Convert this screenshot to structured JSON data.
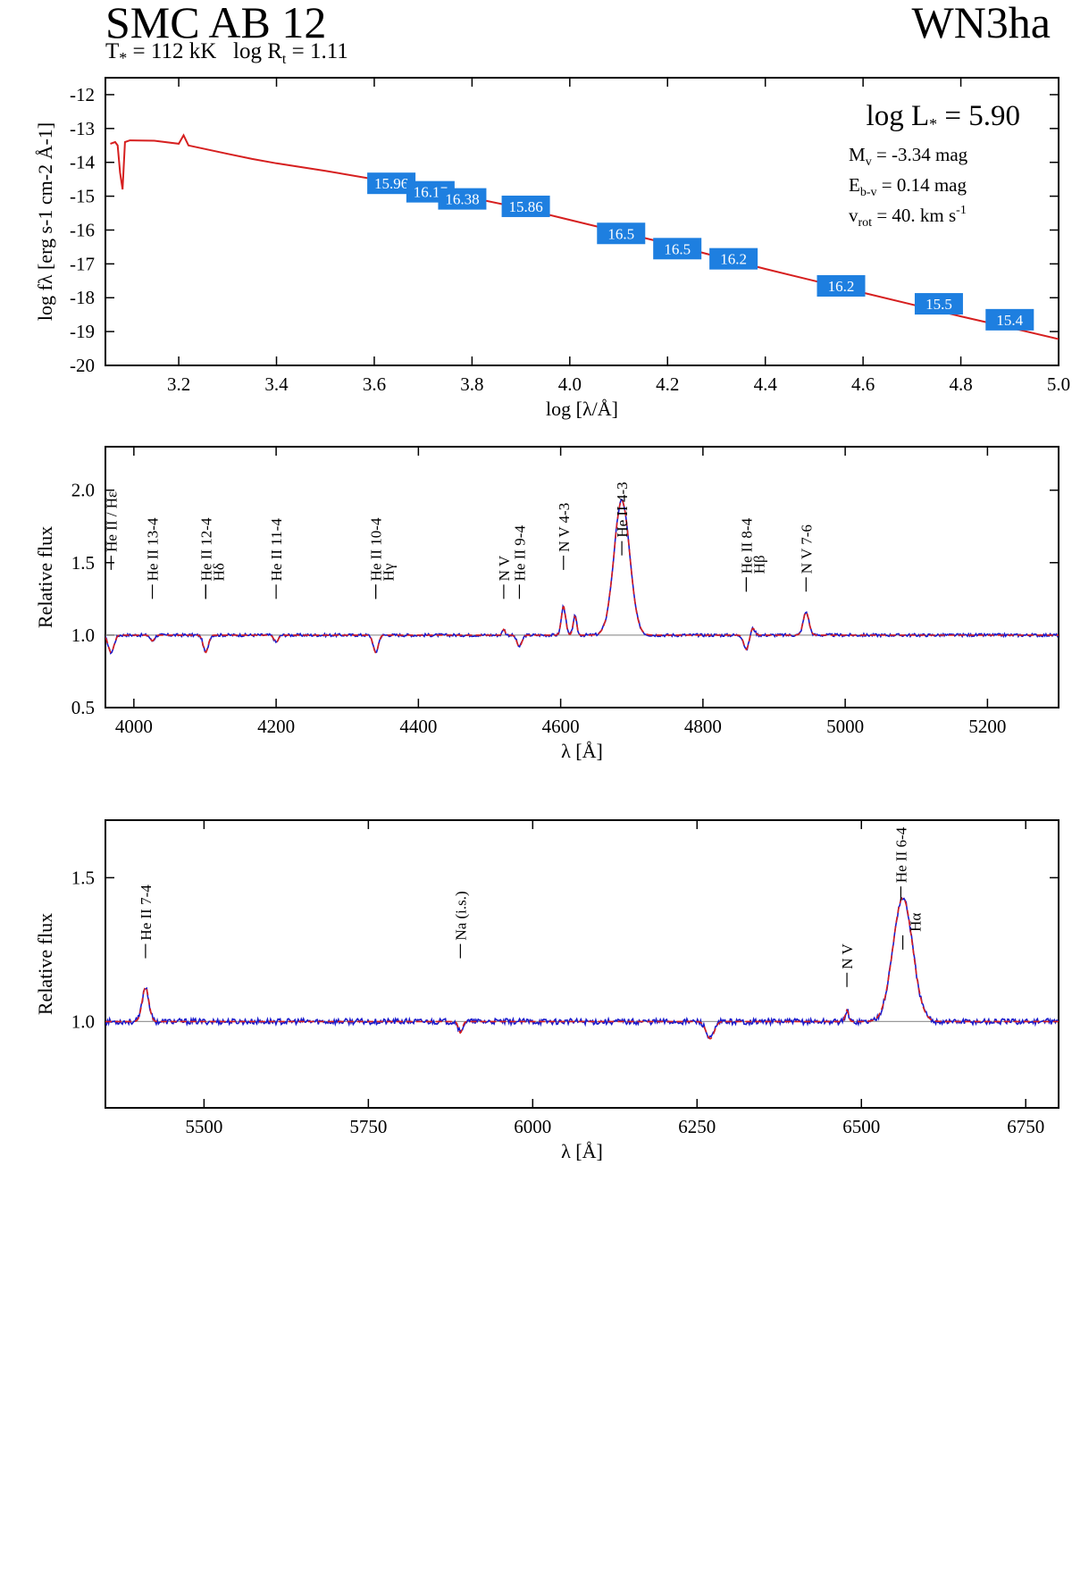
{
  "header": {
    "star_name": "SMC AB 12",
    "params": "T* = 112 kK   log Rt = 1.11",
    "spectral_type": "WN3ha"
  },
  "colors": {
    "model": "#d61f1f",
    "observed": "#1a1acc",
    "photometry_box": "#1e7fe0",
    "continuum": "#999999"
  },
  "chart_data": [
    {
      "type": "line",
      "xlabel": "log [λ/Å]",
      "ylabel": "log fλ [erg s-1 cm-2 Å-1]",
      "xlim": [
        3.05,
        5.0
      ],
      "ylim": [
        -20,
        -11.5
      ],
      "xticks": [
        "3.2",
        "3.4",
        "3.6",
        "3.8",
        "4.0",
        "4.2",
        "4.4",
        "4.6",
        "4.8",
        "5.0"
      ],
      "xtick_values": [
        3.2,
        3.4,
        3.6,
        3.8,
        4.0,
        4.2,
        4.4,
        4.6,
        4.8,
        5.0
      ],
      "yticks": [
        "-12",
        "-13",
        "-14",
        "-15",
        "-16",
        "-17",
        "-18",
        "-19",
        "-20"
      ],
      "ytick_values": [
        -12,
        -13,
        -14,
        -15,
        -16,
        -17,
        -18,
        -19,
        -20
      ],
      "model_sed": {
        "x": [
          3.06,
          3.07,
          3.075,
          3.08,
          3.085,
          3.09,
          3.1,
          3.15,
          3.2,
          3.21,
          3.22,
          3.3,
          3.35,
          3.4,
          3.5,
          3.6,
          3.7,
          3.8,
          3.9,
          4.0,
          4.1,
          4.2,
          4.3,
          4.4,
          4.5,
          4.6,
          4.7,
          4.8,
          4.9,
          5.0
        ],
        "y": [
          -13.45,
          -13.4,
          -13.5,
          -14.3,
          -14.8,
          -13.4,
          -13.35,
          -13.36,
          -13.45,
          -13.2,
          -13.5,
          -13.75,
          -13.9,
          -14.03,
          -14.25,
          -14.5,
          -14.78,
          -15.05,
          -15.35,
          -15.7,
          -16.05,
          -16.4,
          -16.78,
          -17.15,
          -17.5,
          -17.85,
          -18.2,
          -18.55,
          -18.88,
          -19.22
        ]
      },
      "photometry": [
        {
          "x": 3.635,
          "y": -14.62,
          "label": "15.96"
        },
        {
          "x": 3.715,
          "y": -14.87,
          "label": "16.17"
        },
        {
          "x": 3.78,
          "y": -15.08,
          "label": "16.38"
        },
        {
          "x": 3.91,
          "y": -15.3,
          "label": "15.86"
        },
        {
          "x": 4.105,
          "y": -16.1,
          "label": "16.5"
        },
        {
          "x": 4.22,
          "y": -16.55,
          "label": "16.5"
        },
        {
          "x": 4.335,
          "y": -16.85,
          "label": "16.2"
        },
        {
          "x": 4.555,
          "y": -17.65,
          "label": "16.2"
        },
        {
          "x": 4.755,
          "y": -18.18,
          "label": "15.5"
        },
        {
          "x": 4.9,
          "y": -18.65,
          "label": "15.4"
        }
      ],
      "annotations": {
        "luminosity": "log L* =  5.90",
        "mv": "Mv = -3.34 mag",
        "ebv": "Eb-v = 0.14 mag",
        "vrot": "vrot = 40. km s-1"
      }
    },
    {
      "type": "line",
      "xlabel": "λ [Å]",
      "ylabel": "Relative flux",
      "xlim": [
        3960,
        5300
      ],
      "ylim": [
        0.5,
        2.3
      ],
      "xticks": [
        "4000",
        "4200",
        "4400",
        "4600",
        "4800",
        "5000",
        "5200"
      ],
      "xtick_values": [
        4000,
        4200,
        4400,
        4600,
        4800,
        5000,
        5200
      ],
      "yticks": [
        "0.5",
        "1.0",
        "1.5",
        "2.0"
      ],
      "ytick_values": [
        0.5,
        1.0,
        1.5,
        2.0
      ],
      "continuum": 1.0,
      "features": [
        {
          "center": 3968,
          "amp": -0.12,
          "width": 4
        },
        {
          "center": 4026,
          "amp": -0.04,
          "width": 3
        },
        {
          "center": 4101,
          "amp": -0.12,
          "width": 3.5
        },
        {
          "center": 4200,
          "amp": -0.05,
          "width": 3
        },
        {
          "center": 4340,
          "amp": -0.12,
          "width": 3.5
        },
        {
          "center": 4520,
          "amp": 0.04,
          "width": 2
        },
        {
          "center": 4542,
          "amp": -0.08,
          "width": 3.5
        },
        {
          "center": 4604,
          "amp": 0.2,
          "width": 3
        },
        {
          "center": 4620,
          "amp": 0.13,
          "width": 2.5
        },
        {
          "center": 4686,
          "amp": 0.93,
          "width": 11
        },
        {
          "center": 4861,
          "amp": -0.1,
          "width": 3.5
        },
        {
          "center": 4870,
          "amp": 0.05,
          "width": 3
        },
        {
          "center": 4945,
          "amp": 0.16,
          "width": 4
        }
      ],
      "line_labels": [
        {
          "x": 3968,
          "text": "He II / Hε",
          "tick_y": 1.45
        },
        {
          "x": 4026,
          "text": "He II 13-4",
          "tick_y": 1.25
        },
        {
          "x": 4101,
          "text": "He II 12-4",
          "tick_y": 1.25
        },
        {
          "x": 4101,
          "text": "Hδ",
          "tick_y": 1.25,
          "side": "right"
        },
        {
          "x": 4200,
          "text": "He II 11-4",
          "tick_y": 1.25
        },
        {
          "x": 4340,
          "text": "He II 10-4",
          "tick_y": 1.25
        },
        {
          "x": 4340,
          "text": "Hγ",
          "tick_y": 1.25,
          "side": "right"
        },
        {
          "x": 4520,
          "text": "N V",
          "tick_y": 1.25
        },
        {
          "x": 4542,
          "text": "He II 9-4",
          "tick_y": 1.25
        },
        {
          "x": 4604,
          "text": "N V 4-3",
          "tick_y": 1.45
        },
        {
          "x": 4686,
          "text": "He II 4-3",
          "tick_y": 1.55
        },
        {
          "x": 4861,
          "text": "He II 8-4",
          "tick_y": 1.3
        },
        {
          "x": 4861,
          "text": "Hβ",
          "tick_y": 1.3,
          "side": "right"
        },
        {
          "x": 4945,
          "text": "N V 7-6",
          "tick_y": 1.3
        }
      ]
    },
    {
      "type": "line",
      "xlabel": "λ [Å]",
      "ylabel": "Relative flux",
      "xlim": [
        5350,
        6800
      ],
      "ylim": [
        0.7,
        1.7
      ],
      "xticks": [
        "5500",
        "5750",
        "6000",
        "6250",
        "6500",
        "6750"
      ],
      "xtick_values": [
        5500,
        5750,
        6000,
        6250,
        6500,
        6750
      ],
      "yticks": [
        "1.0",
        "1.5"
      ],
      "ytick_values": [
        1.0,
        1.5
      ],
      "continuum": 1.0,
      "features": [
        {
          "center": 5411,
          "amp": 0.12,
          "width": 5
        },
        {
          "center": 5890,
          "amp": -0.04,
          "width": 3
        },
        {
          "center": 6270,
          "amp": -0.06,
          "width": 6
        },
        {
          "center": 6478,
          "amp": 0.04,
          "width": 2.5
        },
        {
          "center": 6563,
          "amp": 0.43,
          "width": 15
        }
      ],
      "line_labels": [
        {
          "x": 5411,
          "text": "He II 7-4",
          "tick_y": 1.22
        },
        {
          "x": 5890,
          "text": "Na (i.s.)",
          "tick_y": 1.22
        },
        {
          "x": 6478,
          "text": "N V",
          "tick_y": 1.12
        },
        {
          "x": 6560,
          "text": "He II 6-4",
          "tick_y": 1.42
        },
        {
          "x": 6563,
          "text": "Hα",
          "tick_y": 1.25,
          "side": "right"
        }
      ]
    }
  ]
}
